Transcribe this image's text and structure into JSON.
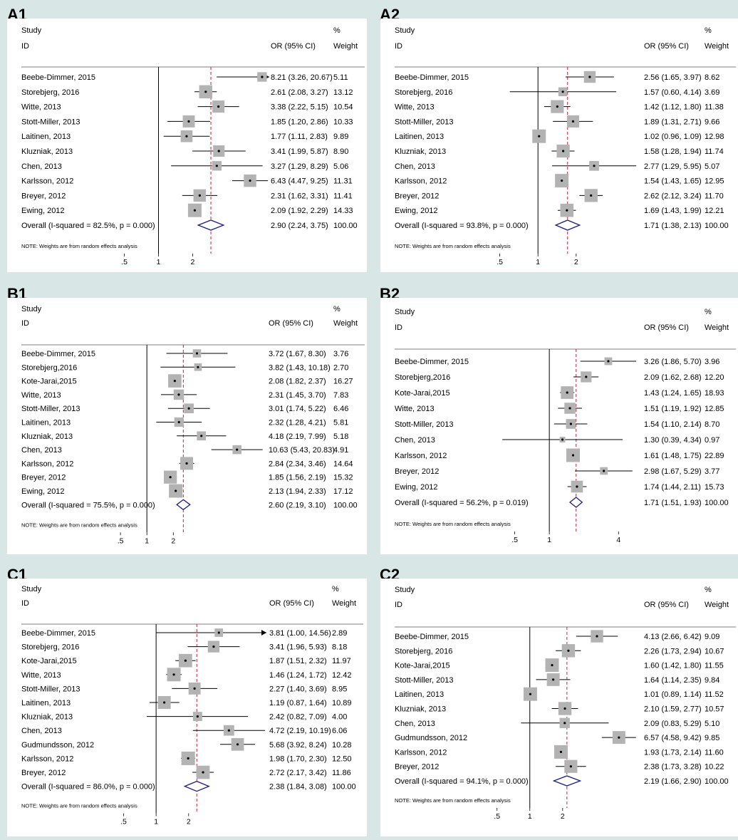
{
  "colors": {
    "box": "#b3b3b3",
    "diamond": "#1f1f7a",
    "ref_line": "#c0253b",
    "line": "#000000",
    "background": "#d9e6e6",
    "panel": "#ffffff"
  },
  "chart_data": [
    {
      "type": "forest",
      "panel_label": "A1",
      "header": {
        "study": "Study",
        "id": "ID",
        "or": "OR (95% CI)",
        "pct": "%",
        "weight": "Weight"
      },
      "note": "NOTE: Weights are from random effects analysis",
      "x_scale": "log",
      "x_ticks": [
        ".5",
        "1",
        "2"
      ],
      "xlim": [
        0.35,
        9.5
      ],
      "studies": [
        {
          "label": "Beebe-Dimmer, 2015",
          "or": 8.21,
          "lo": 3.26,
          "hi": 20.67,
          "ci_text": "8.21 (3.26, 20.67)",
          "weight": "5.11",
          "arrow": true
        },
        {
          "label": "Storebjerg, 2016",
          "or": 2.61,
          "lo": 2.08,
          "hi": 3.27,
          "ci_text": "2.61 (2.08, 3.27)",
          "weight": "13.12"
        },
        {
          "label": "Witte, 2013",
          "or": 3.38,
          "lo": 2.22,
          "hi": 5.15,
          "ci_text": "3.38 (2.22, 5.15)",
          "weight": "10.54"
        },
        {
          "label": "Stott-Miller, 2013",
          "or": 1.85,
          "lo": 1.2,
          "hi": 2.86,
          "ci_text": "1.85 (1.20, 2.86)",
          "weight": "10.33"
        },
        {
          "label": "Laitinen, 2013",
          "or": 1.77,
          "lo": 1.11,
          "hi": 2.83,
          "ci_text": "1.77 (1.11, 2.83)",
          "weight": "9.89"
        },
        {
          "label": "Kluzniak, 2013",
          "or": 3.41,
          "lo": 1.99,
          "hi": 5.87,
          "ci_text": "3.41 (1.99, 5.87)",
          "weight": "8.90"
        },
        {
          "label": "Chen, 2013",
          "or": 3.27,
          "lo": 1.29,
          "hi": 8.29,
          "ci_text": "3.27 (1.29, 8.29)",
          "weight": "5.06"
        },
        {
          "label": "Karlsson, 2012",
          "or": 6.43,
          "lo": 4.47,
          "hi": 9.25,
          "ci_text": "6.43 (4.47, 9.25)",
          "weight": "11.31"
        },
        {
          "label": "Breyer, 2012",
          "or": 2.31,
          "lo": 1.62,
          "hi": 3.31,
          "ci_text": "2.31 (1.62, 3.31)",
          "weight": "11.41"
        },
        {
          "label": "Ewing, 2012",
          "or": 2.09,
          "lo": 1.92,
          "hi": 2.29,
          "ci_text": "2.09 (1.92, 2.29)",
          "weight": "14.33"
        }
      ],
      "overall": {
        "label": "Overall  (I-squared = 82.5%, p = 0.000)",
        "or": 2.9,
        "lo": 2.24,
        "hi": 3.75,
        "ci_text": "2.90 (2.24, 3.75)",
        "weight": "100.00"
      }
    },
    {
      "type": "forest",
      "panel_label": "A2",
      "header": {
        "study": "Study",
        "id": "ID",
        "or": "OR (95% CI)",
        "pct": "%",
        "weight": "Weight"
      },
      "note": "NOTE: Weights are from random effects analysis",
      "x_scale": "log",
      "x_ticks": [
        ".5",
        "1",
        "2"
      ],
      "xlim": [
        0.35,
        6.5
      ],
      "studies": [
        {
          "label": "Beebe-Dimmer, 2015",
          "or": 2.56,
          "lo": 1.65,
          "hi": 3.97,
          "ci_text": "2.56 (1.65, 3.97)",
          "weight": "8.62"
        },
        {
          "label": "Storebjerg, 2016",
          "or": 1.57,
          "lo": 0.6,
          "hi": 4.14,
          "ci_text": "1.57 (0.60, 4.14)",
          "weight": "3.69"
        },
        {
          "label": "Witte, 2013",
          "or": 1.42,
          "lo": 1.12,
          "hi": 1.8,
          "ci_text": "1.42 (1.12, 1.80)",
          "weight": "11.38"
        },
        {
          "label": "Stott-Miller, 2013",
          "or": 1.89,
          "lo": 1.31,
          "hi": 2.71,
          "ci_text": "1.89 (1.31, 2.71)",
          "weight": "9.66"
        },
        {
          "label": "Laitinen, 2013",
          "or": 1.02,
          "lo": 0.96,
          "hi": 1.09,
          "ci_text": "1.02 (0.96, 1.09)",
          "weight": "12.98"
        },
        {
          "label": "Kluzniak, 2013",
          "or": 1.58,
          "lo": 1.28,
          "hi": 1.94,
          "ci_text": "1.58 (1.28, 1.94)",
          "weight": "11.74"
        },
        {
          "label": "Chen, 2013",
          "or": 2.77,
          "lo": 1.29,
          "hi": 5.95,
          "ci_text": "2.77 (1.29, 5.95)",
          "weight": "5.07"
        },
        {
          "label": "Karlsson, 2012",
          "or": 1.54,
          "lo": 1.43,
          "hi": 1.65,
          "ci_text": "1.54 (1.43, 1.65)",
          "weight": "12.95"
        },
        {
          "label": "Breyer, 2012",
          "or": 2.62,
          "lo": 2.12,
          "hi": 3.24,
          "ci_text": "2.62 (2.12, 3.24)",
          "weight": "11.70"
        },
        {
          "label": "Ewing, 2012",
          "or": 1.69,
          "lo": 1.43,
          "hi": 1.99,
          "ci_text": "1.69 (1.43, 1.99)",
          "weight": "12.21"
        }
      ],
      "overall": {
        "label": "Overall  (I-squared = 93.8%, p = 0.000)",
        "or": 1.71,
        "lo": 1.38,
        "hi": 2.13,
        "ci_text": "1.71 (1.38, 2.13)",
        "weight": "100.00"
      }
    },
    {
      "type": "forest",
      "panel_label": "B1",
      "header": {
        "study": "Study",
        "id": "ID",
        "or": "OR (95% CI)",
        "pct": "%",
        "weight": "Weight"
      },
      "note": "NOTE: Weights are from random effects analysis",
      "x_scale": "log",
      "x_ticks": [
        ".5",
        "1",
        "2"
      ],
      "xlim": [
        0.35,
        23
      ],
      "studies": [
        {
          "label": "Beebe-Dimmer, 2015",
          "or": 3.72,
          "lo": 1.67,
          "hi": 8.3,
          "ci_text": "3.72 (1.67, 8.30)",
          "weight": "3.76"
        },
        {
          "label": "Storebjerg,2016",
          "or": 3.82,
          "lo": 1.43,
          "hi": 10.18,
          "ci_text": "3.82 (1.43, 10.18)",
          "weight": "2.70"
        },
        {
          "label": "Kote-Jarai,2015",
          "or": 2.08,
          "lo": 1.82,
          "hi": 2.37,
          "ci_text": "2.08 (1.82, 2.37)",
          "weight": "16.27"
        },
        {
          "label": "Witte, 2013",
          "or": 2.31,
          "lo": 1.45,
          "hi": 3.7,
          "ci_text": "2.31 (1.45, 3.70)",
          "weight": "7.83"
        },
        {
          "label": "Stott-Miller, 2013",
          "or": 3.01,
          "lo": 1.74,
          "hi": 5.22,
          "ci_text": "3.01 (1.74, 5.22)",
          "weight": "6.46"
        },
        {
          "label": "Laitinen, 2013",
          "or": 2.32,
          "lo": 1.28,
          "hi": 4.21,
          "ci_text": "2.32 (1.28, 4.21)",
          "weight": "5.81"
        },
        {
          "label": "Kluzniak, 2013",
          "or": 4.18,
          "lo": 2.19,
          "hi": 7.99,
          "ci_text": "4.18 (2.19, 7.99)",
          "weight": "5.18"
        },
        {
          "label": "Chen, 2013",
          "or": 10.63,
          "lo": 5.43,
          "hi": 20.83,
          "ci_text": "10.63 (5.43, 20.83)",
          "weight": "4.91"
        },
        {
          "label": "Karlsson, 2012",
          "or": 2.84,
          "lo": 2.34,
          "hi": 3.46,
          "ci_text": "2.84 (2.34, 3.46)",
          "weight": "14.64"
        },
        {
          "label": "Breyer, 2012",
          "or": 1.85,
          "lo": 1.56,
          "hi": 2.19,
          "ci_text": "1.85 (1.56, 2.19)",
          "weight": "15.32"
        },
        {
          "label": "Ewing, 2012",
          "or": 2.13,
          "lo": 1.94,
          "hi": 2.33,
          "ci_text": "2.13 (1.94, 2.33)",
          "weight": "17.12"
        }
      ],
      "overall": {
        "label": "Overall  (I-squared = 75.5%, p = 0.000)",
        "or": 2.6,
        "lo": 2.19,
        "hi": 3.1,
        "ci_text": "2.60 (2.19, 3.10)",
        "weight": "100.00"
      }
    },
    {
      "type": "forest",
      "panel_label": "B2",
      "header": {
        "study": "Study",
        "id": "ID",
        "or": "OR (95% CI)",
        "pct": "%",
        "weight": "Weight"
      },
      "note": "NOTE: Weights are from random effects analysis",
      "x_scale": "log",
      "x_ticks": [
        ".5",
        "1",
        "4"
      ],
      "xlim": [
        0.25,
        6.2
      ],
      "studies": [
        {
          "label": "Beebe-Dimmer, 2015",
          "or": 3.26,
          "lo": 1.86,
          "hi": 5.7,
          "ci_text": "3.26 (1.86, 5.70)",
          "weight": "3.96"
        },
        {
          "label": "Storebjerg,2016",
          "or": 2.09,
          "lo": 1.62,
          "hi": 2.68,
          "ci_text": "2.09 (1.62, 2.68)",
          "weight": "12.20"
        },
        {
          "label": "Kote-Jarai,2015",
          "or": 1.43,
          "lo": 1.24,
          "hi": 1.65,
          "ci_text": "1.43 (1.24, 1.65)",
          "weight": "18.93"
        },
        {
          "label": "Witte, 2013",
          "or": 1.51,
          "lo": 1.19,
          "hi": 1.92,
          "ci_text": "1.51 (1.19, 1.92)",
          "weight": "12.85"
        },
        {
          "label": "Stott-Miller, 2013",
          "or": 1.54,
          "lo": 1.1,
          "hi": 2.14,
          "ci_text": "1.54 (1.10, 2.14)",
          "weight": "8.70"
        },
        {
          "label": "Chen, 2013",
          "or": 1.3,
          "lo": 0.39,
          "hi": 4.34,
          "ci_text": "1.30 (0.39, 4.34)",
          "weight": "0.97"
        },
        {
          "label": "Karlsson, 2012",
          "or": 1.61,
          "lo": 1.48,
          "hi": 1.75,
          "ci_text": "1.61 (1.48, 1.75)",
          "weight": "22.89"
        },
        {
          "label": "Breyer, 2012",
          "or": 2.98,
          "lo": 1.67,
          "hi": 5.29,
          "ci_text": "2.98 (1.67, 5.29)",
          "weight": "3.77"
        },
        {
          "label": "Ewing, 2012",
          "or": 1.74,
          "lo": 1.44,
          "hi": 2.11,
          "ci_text": "1.74 (1.44, 2.11)",
          "weight": "15.73"
        }
      ],
      "overall": {
        "label": "Overall  (I-squared = 56.2%, p = 0.019)",
        "or": 1.71,
        "lo": 1.51,
        "hi": 1.93,
        "ci_text": "1.71 (1.51, 1.93)",
        "weight": "100.00"
      }
    },
    {
      "type": "forest",
      "panel_label": "C1",
      "header": {
        "study": "Study",
        "id": "ID",
        "or": "OR (95% CI)",
        "pct": "%",
        "weight": "Weight"
      },
      "note": "NOTE: Weights are from random effects analysis",
      "x_scale": "log",
      "x_ticks": [
        ".5",
        "1",
        "2"
      ],
      "xlim": [
        0.35,
        10.5
      ],
      "studies": [
        {
          "label": "Beebe-Dimmer, 2015",
          "or": 3.81,
          "lo": 1.0,
          "hi": 14.56,
          "ci_text": "3.81 (1.00, 14.56)",
          "weight": "2.89",
          "arrow": true
        },
        {
          "label": "Storebjerg, 2016",
          "or": 3.41,
          "lo": 1.96,
          "hi": 5.93,
          "ci_text": "3.41 (1.96, 5.93)",
          "weight": "8.18"
        },
        {
          "label": "Kote-Jarai,2015",
          "or": 1.87,
          "lo": 1.51,
          "hi": 2.32,
          "ci_text": "1.87 (1.51, 2.32)",
          "weight": "11.97"
        },
        {
          "label": "Witte, 2013",
          "or": 1.46,
          "lo": 1.24,
          "hi": 1.72,
          "ci_text": "1.46 (1.24, 1.72)",
          "weight": "12.42"
        },
        {
          "label": "Stott-Miller, 2013",
          "or": 2.27,
          "lo": 1.4,
          "hi": 3.69,
          "ci_text": "2.27 (1.40, 3.69)",
          "weight": "8.95"
        },
        {
          "label": "Laitinen, 2013",
          "or": 1.19,
          "lo": 0.87,
          "hi": 1.64,
          "ci_text": "1.19 (0.87, 1.64)",
          "weight": "10.89"
        },
        {
          "label": "Kluzniak, 2013",
          "or": 2.42,
          "lo": 0.82,
          "hi": 7.09,
          "ci_text": "2.42 (0.82, 7.09)",
          "weight": "4.00"
        },
        {
          "label": "Chen, 2013",
          "or": 4.72,
          "lo": 2.19,
          "hi": 10.19,
          "ci_text": "4.72 (2.19, 10.19)",
          "weight": "6.06"
        },
        {
          "label": "Gudmundsson, 2012",
          "or": 5.68,
          "lo": 3.92,
          "hi": 8.24,
          "ci_text": "5.68 (3.92, 8.24)",
          "weight": "10.28"
        },
        {
          "label": "Karlsson, 2012",
          "or": 1.98,
          "lo": 1.7,
          "hi": 2.3,
          "ci_text": "1.98 (1.70, 2.30)",
          "weight": "12.50"
        },
        {
          "label": "Breyer, 2012",
          "or": 2.72,
          "lo": 2.17,
          "hi": 3.42,
          "ci_text": "2.72 (2.17, 3.42)",
          "weight": "11.86"
        }
      ],
      "overall": {
        "label": "Overall  (I-squared = 86.0%, p = 0.000)",
        "or": 2.38,
        "lo": 1.84,
        "hi": 3.08,
        "ci_text": "2.38 (1.84, 3.08)",
        "weight": "100.00"
      }
    },
    {
      "type": "forest",
      "panel_label": "C2",
      "header": {
        "study": "Study",
        "id": "ID",
        "or": "OR (95% CI)",
        "pct": "%",
        "weight": "Weight"
      },
      "note": "NOTE: Weights are from random effects analysis",
      "x_scale": "log",
      "x_ticks": [
        ".5",
        "1",
        "2"
      ],
      "xlim": [
        0.35,
        10.5
      ],
      "studies": [
        {
          "label": "Beebe-Dimmer, 2015",
          "or": 4.13,
          "lo": 2.66,
          "hi": 6.42,
          "ci_text": "4.13 (2.66, 6.42)",
          "weight": "9.09"
        },
        {
          "label": "Storebjerg, 2016",
          "or": 2.26,
          "lo": 1.73,
          "hi": 2.94,
          "ci_text": "2.26 (1.73, 2.94)",
          "weight": "10.67"
        },
        {
          "label": "Kote-Jarai,2015",
          "or": 1.6,
          "lo": 1.42,
          "hi": 1.8,
          "ci_text": "1.60 (1.42, 1.80)",
          "weight": "11.55"
        },
        {
          "label": "Stott-Miller, 2013",
          "or": 1.64,
          "lo": 1.14,
          "hi": 2.35,
          "ci_text": "1.64 (1.14, 2.35)",
          "weight": "9.84"
        },
        {
          "label": "Laitinen, 2013",
          "or": 1.01,
          "lo": 0.89,
          "hi": 1.14,
          "ci_text": "1.01 (0.89, 1.14)",
          "weight": "11.52"
        },
        {
          "label": "Kluzniak, 2013",
          "or": 2.1,
          "lo": 1.59,
          "hi": 2.77,
          "ci_text": "2.10 (1.59, 2.77)",
          "weight": "10.57"
        },
        {
          "label": "Chen, 2013",
          "or": 2.09,
          "lo": 0.83,
          "hi": 5.29,
          "ci_text": "2.09 (0.83, 5.29)",
          "weight": "5.10"
        },
        {
          "label": "Gudmundsson, 2012",
          "or": 6.57,
          "lo": 4.58,
          "hi": 9.42,
          "ci_text": "6.57 (4.58, 9.42)",
          "weight": "9.85"
        },
        {
          "label": "Karlsson, 2012",
          "or": 1.93,
          "lo": 1.73,
          "hi": 2.14,
          "ci_text": "1.93 (1.73, 2.14)",
          "weight": "11.60"
        },
        {
          "label": "Breyer, 2012",
          "or": 2.38,
          "lo": 1.73,
          "hi": 3.28,
          "ci_text": "2.38 (1.73, 3.28)",
          "weight": "10.22"
        }
      ],
      "overall": {
        "label": "Overall  (I-squared = 94.1%, p = 0.000)",
        "or": 2.19,
        "lo": 1.66,
        "hi": 2.9,
        "ci_text": "2.19 (1.66, 2.90)",
        "weight": "100.00"
      }
    }
  ]
}
